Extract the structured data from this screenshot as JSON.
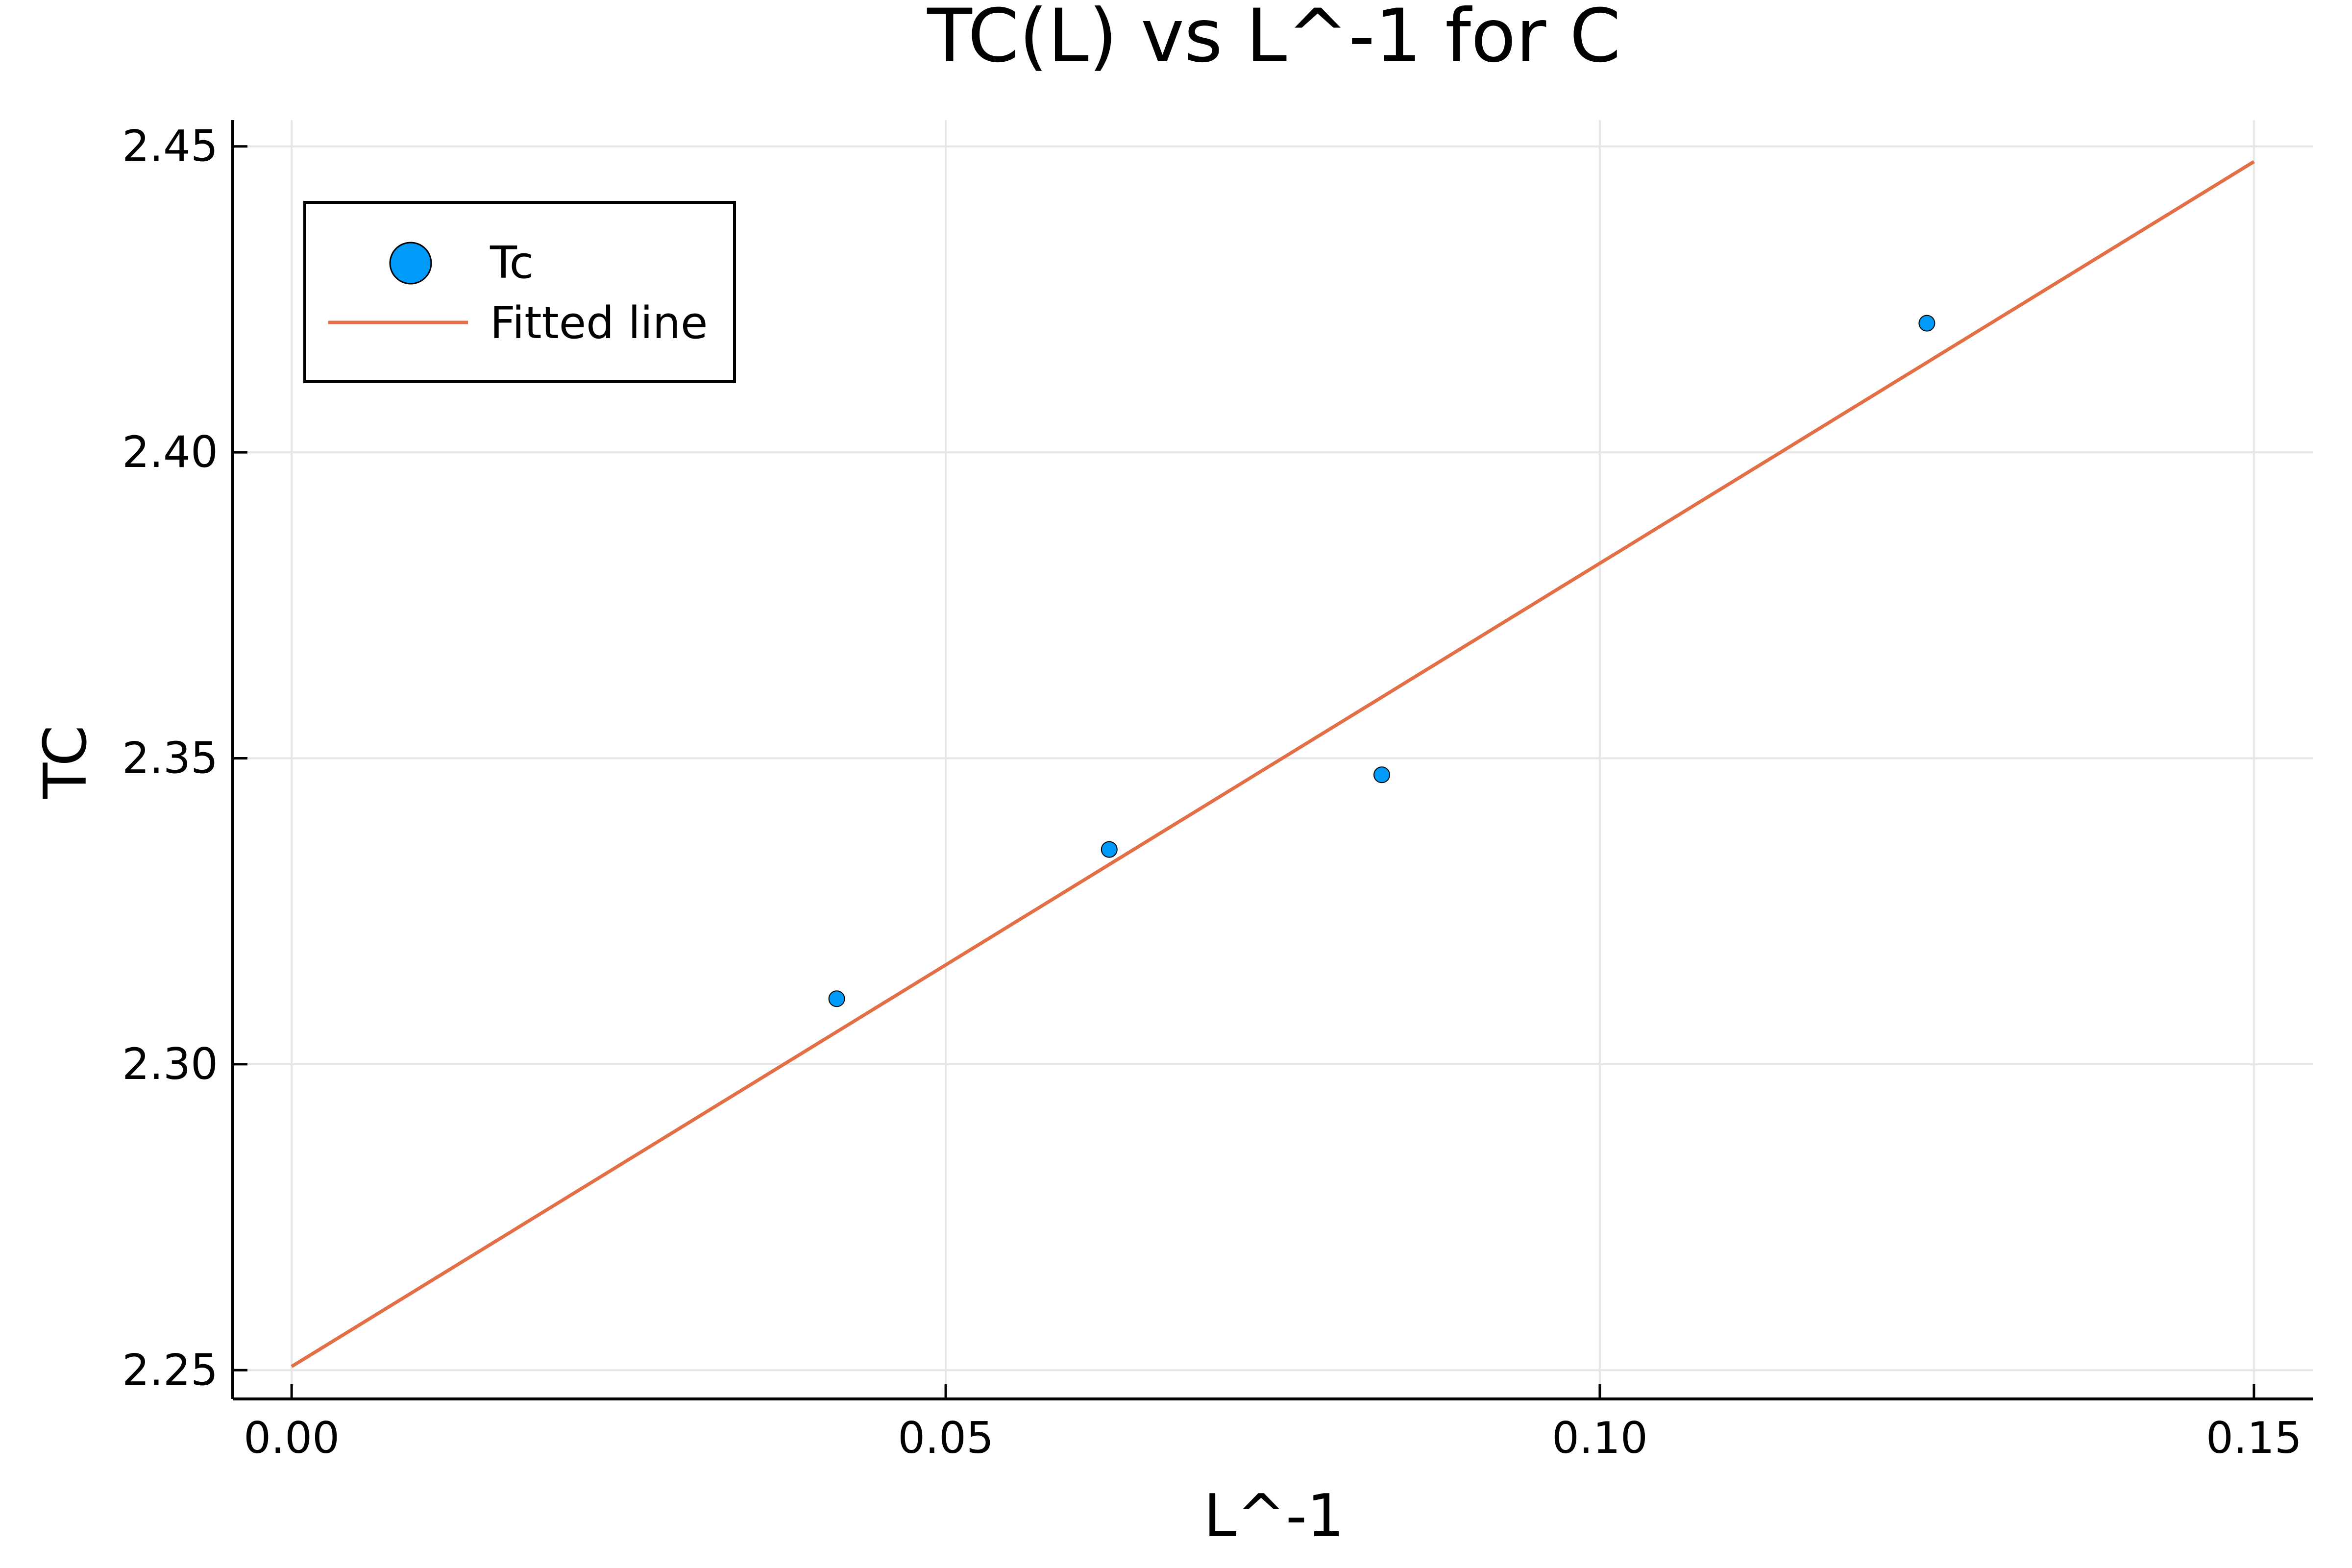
{
  "chart_data": {
    "type": "scatter",
    "title": "TC(L) vs L^-1 for C",
    "xlabel": "L^-1",
    "ylabel": "TC",
    "xlim": [
      -0.0045,
      0.1545
    ],
    "ylim": [
      2.2453,
      2.4543
    ],
    "x_ticks": [
      0.0,
      0.05,
      0.1,
      0.15
    ],
    "x_tick_labels": [
      "0.00",
      "0.05",
      "0.10",
      "0.15"
    ],
    "y_ticks": [
      2.25,
      2.3,
      2.35,
      2.4,
      2.45
    ],
    "y_tick_labels": [
      "2.25",
      "2.30",
      "2.35",
      "2.40",
      "2.45"
    ],
    "grid": true,
    "legend_position": "top-left",
    "series": [
      {
        "name": "Tc",
        "kind": "scatter",
        "color": "#009af9",
        "x": [
          0.041667,
          0.0625,
          0.083333,
          0.125
        ],
        "y": [
          2.3107,
          2.3351,
          2.3473,
          2.4211
        ]
      },
      {
        "name": "Fitted line",
        "kind": "line",
        "color": "#e26f46",
        "x": [
          0.0,
          0.15
        ],
        "y": [
          2.2506,
          2.4475
        ]
      }
    ]
  }
}
